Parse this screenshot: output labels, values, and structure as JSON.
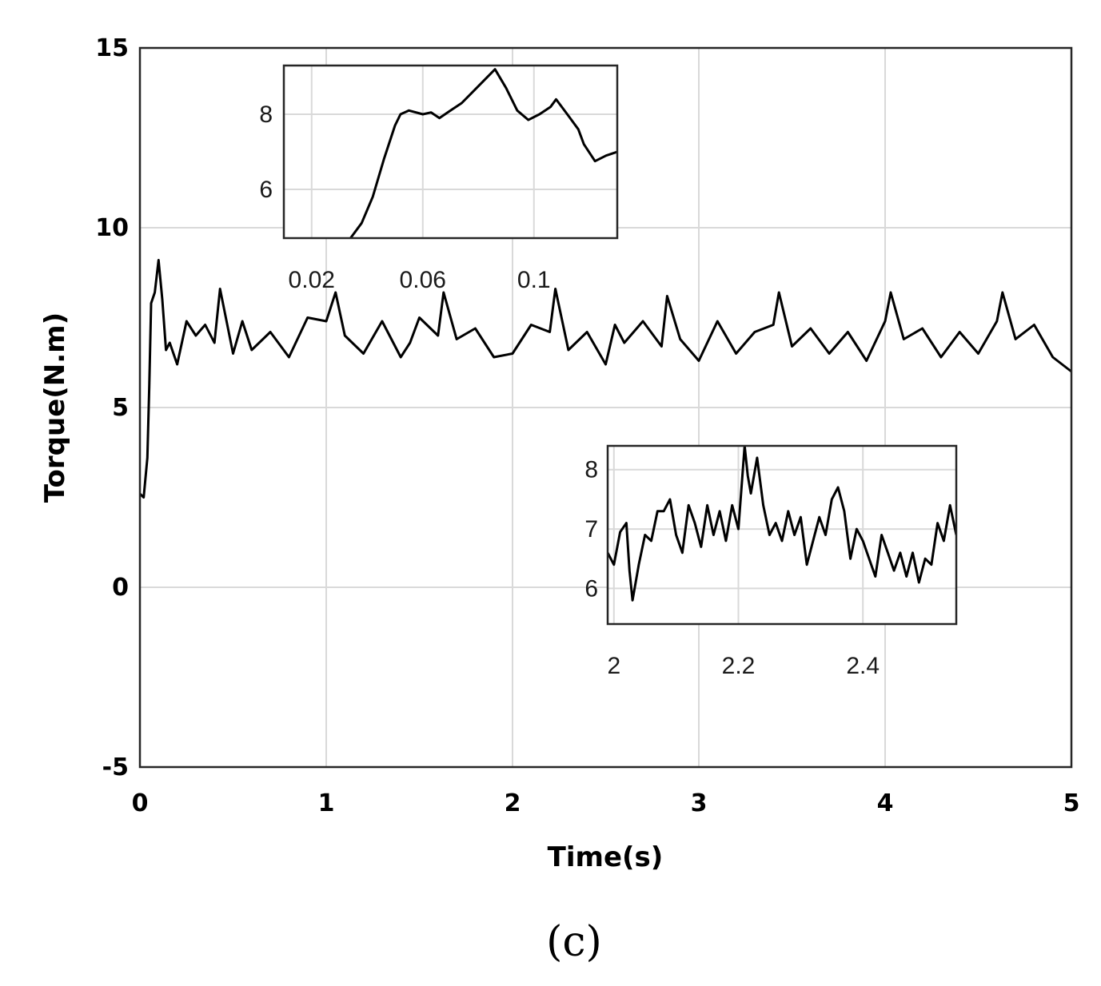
{
  "figure": {
    "panel_label": "(c)"
  },
  "chart_data": [
    {
      "type": "line",
      "role": "main",
      "xlabel": "Time(s)",
      "ylabel": "Torque(N.m)",
      "xlim": [
        0,
        5
      ],
      "ylim": [
        -5,
        15
      ],
      "xticks": [
        0,
        1,
        2,
        3,
        4,
        5
      ],
      "xtick_labels": [
        "0",
        "1",
        "2",
        "3",
        "4",
        "5"
      ],
      "yticks": [
        -5,
        0,
        5,
        10,
        15
      ],
      "ytick_labels": [
        "-5",
        "0",
        "5",
        "10",
        "15"
      ],
      "grid": true,
      "series": [
        {
          "color": "#000000",
          "x": [
            0.0,
            0.02,
            0.04,
            0.05,
            0.06,
            0.08,
            0.1,
            0.12,
            0.14,
            0.16,
            0.2,
            0.25,
            0.3,
            0.35,
            0.4,
            0.43,
            0.5,
            0.55,
            0.6,
            0.7,
            0.8,
            0.9,
            1.0,
            1.05,
            1.1,
            1.2,
            1.3,
            1.4,
            1.45,
            1.5,
            1.6,
            1.63,
            1.7,
            1.8,
            1.9,
            2.0,
            2.1,
            2.2,
            2.23,
            2.3,
            2.4,
            2.5,
            2.55,
            2.6,
            2.7,
            2.8,
            2.83,
            2.9,
            3.0,
            3.1,
            3.2,
            3.3,
            3.4,
            3.43,
            3.5,
            3.6,
            3.7,
            3.8,
            3.9,
            4.0,
            4.03,
            4.1,
            4.2,
            4.3,
            4.4,
            4.5,
            4.6,
            4.63,
            4.7,
            4.8,
            4.9,
            5.0
          ],
          "y": [
            2.6,
            2.5,
            3.6,
            5.6,
            7.9,
            8.2,
            9.1,
            8.0,
            6.6,
            6.8,
            6.2,
            7.4,
            7.0,
            7.3,
            6.8,
            8.3,
            6.5,
            7.4,
            6.6,
            7.1,
            6.4,
            7.5,
            7.4,
            8.2,
            7.0,
            6.5,
            7.4,
            6.4,
            6.8,
            7.5,
            7.0,
            8.2,
            6.9,
            7.2,
            6.4,
            6.5,
            7.3,
            7.1,
            8.3,
            6.6,
            7.1,
            6.2,
            7.3,
            6.8,
            7.4,
            6.7,
            8.1,
            6.9,
            6.3,
            7.4,
            6.5,
            7.1,
            7.3,
            8.2,
            6.7,
            7.2,
            6.5,
            7.1,
            6.3,
            7.4,
            8.2,
            6.9,
            7.2,
            6.4,
            7.1,
            6.5,
            7.4,
            8.2,
            6.9,
            7.3,
            6.4,
            6.0
          ]
        }
      ]
    },
    {
      "type": "line",
      "role": "inset-top",
      "xlim": [
        0.01,
        0.13
      ],
      "ylim": [
        4.7,
        9.3
      ],
      "xticks": [
        0.02,
        0.06,
        0.1
      ],
      "xtick_labels": [
        "0.02",
        "0.06",
        "0.1"
      ],
      "yticks": [
        6,
        8
      ],
      "ytick_labels": [
        "6",
        "8"
      ],
      "grid": true,
      "series": [
        {
          "color": "#000000",
          "x": [
            0.034,
            0.038,
            0.042,
            0.046,
            0.05,
            0.052,
            0.055,
            0.06,
            0.063,
            0.066,
            0.07,
            0.074,
            0.078,
            0.082,
            0.086,
            0.09,
            0.094,
            0.098,
            0.102,
            0.106,
            0.108,
            0.112,
            0.116,
            0.118,
            0.122,
            0.126,
            0.13
          ],
          "y": [
            4.7,
            5.1,
            5.8,
            6.8,
            7.7,
            8.0,
            8.1,
            8.0,
            8.05,
            7.9,
            8.1,
            8.3,
            8.6,
            8.9,
            9.2,
            8.7,
            8.1,
            7.85,
            8.0,
            8.2,
            8.4,
            8.0,
            7.6,
            7.2,
            6.75,
            6.9,
            7.0
          ]
        }
      ]
    },
    {
      "type": "line",
      "role": "inset-bottom",
      "xlim": [
        1.99,
        2.55
      ],
      "ylim": [
        5.4,
        8.4
      ],
      "xticks": [
        2,
        2.2,
        2.4
      ],
      "xtick_labels": [
        "2",
        "2.2",
        "2.4"
      ],
      "yticks": [
        6,
        7,
        8
      ],
      "ytick_labels": [
        "6",
        "7",
        "8"
      ],
      "grid": true,
      "series": [
        {
          "color": "#000000",
          "x": [
            1.99,
            2.0,
            2.01,
            2.02,
            2.025,
            2.03,
            2.04,
            2.05,
            2.06,
            2.07,
            2.08,
            2.09,
            2.1,
            2.11,
            2.12,
            2.13,
            2.14,
            2.15,
            2.16,
            2.17,
            2.18,
            2.19,
            2.2,
            2.21,
            2.215,
            2.22,
            2.23,
            2.24,
            2.25,
            2.26,
            2.27,
            2.28,
            2.29,
            2.3,
            2.31,
            2.32,
            2.33,
            2.34,
            2.35,
            2.36,
            2.37,
            2.38,
            2.39,
            2.4,
            2.41,
            2.42,
            2.43,
            2.44,
            2.45,
            2.46,
            2.47,
            2.48,
            2.49,
            2.5,
            2.51,
            2.52,
            2.53,
            2.54,
            2.55
          ],
          "y": [
            6.6,
            6.4,
            6.95,
            7.1,
            6.3,
            5.8,
            6.4,
            6.9,
            6.8,
            7.3,
            7.3,
            7.5,
            6.9,
            6.6,
            7.4,
            7.1,
            6.7,
            7.4,
            6.9,
            7.3,
            6.8,
            7.4,
            7.0,
            8.4,
            7.9,
            7.6,
            8.2,
            7.4,
            6.9,
            7.1,
            6.8,
            7.3,
            6.9,
            7.2,
            6.4,
            6.8,
            7.2,
            6.9,
            7.5,
            7.7,
            7.3,
            6.5,
            7.0,
            6.8,
            6.5,
            6.2,
            6.9,
            6.6,
            6.3,
            6.6,
            6.2,
            6.6,
            6.1,
            6.5,
            6.4,
            7.1,
            6.8,
            7.4,
            6.9
          ]
        }
      ]
    }
  ]
}
